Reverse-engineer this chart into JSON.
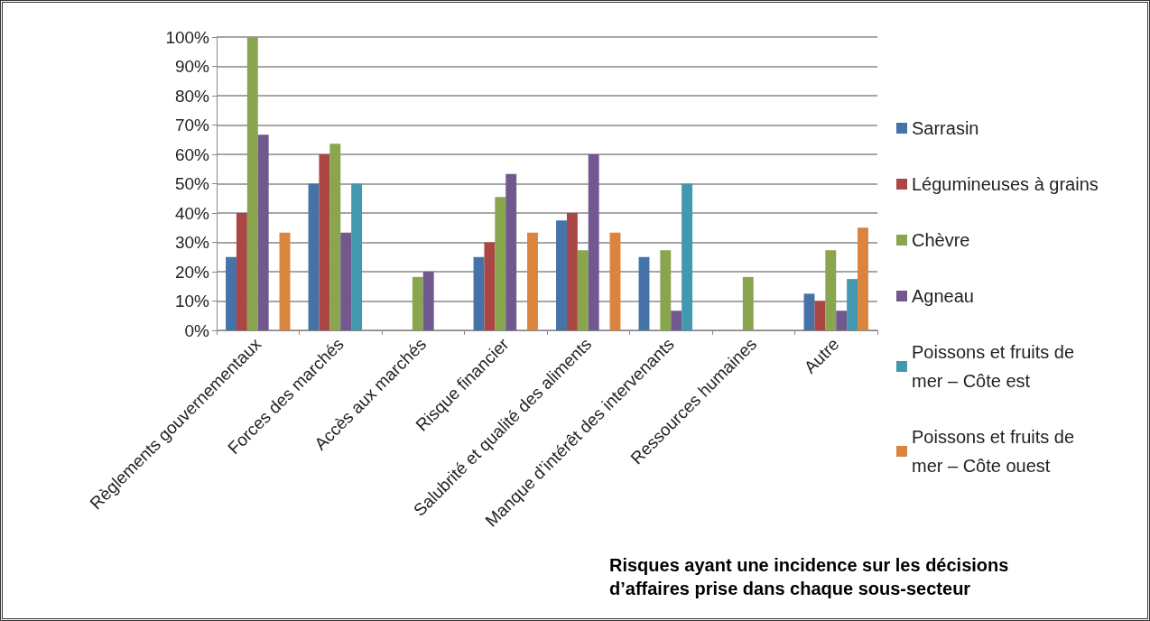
{
  "chart_data": {
    "type": "bar",
    "title": "Risques ayant une incidence sur les décisions d’affaires prise dans chaque sous-secteur",
    "categories": [
      "Règlements gouvernementaux",
      "Forces des marchés",
      "Accès aux marchés",
      "Risque financier",
      "Salubrité et qualité des aliments",
      "Manque d’intérêt des intervenants",
      "Ressources humaines",
      "Autre"
    ],
    "series": [
      {
        "name": "Sarrasin",
        "color": "#4572a7",
        "values": [
          25,
          50,
          0,
          25,
          37.5,
          25,
          0,
          12.5
        ]
      },
      {
        "name": "Légumineuses à grains",
        "color": "#aa4643",
        "values": [
          40,
          60,
          0,
          30,
          40,
          0,
          0,
          10
        ]
      },
      {
        "name": "Chèvre",
        "color": "#89a54e",
        "values": [
          100,
          63.6,
          18.2,
          45.5,
          27.3,
          27.3,
          18.2,
          27.3
        ]
      },
      {
        "name": "Agneau",
        "color": "#71588f",
        "values": [
          66.7,
          33.3,
          20,
          53.3,
          60,
          6.7,
          0,
          6.7
        ]
      },
      {
        "name": "Poissons et fruits de mer – Côte est",
        "color": "#4198af",
        "values": [
          0,
          50,
          0,
          0,
          0,
          50,
          0,
          17.5
        ]
      },
      {
        "name": "Poissons et fruits de mer – Côte ouest",
        "color": "#db843d",
        "values": [
          33.3,
          0,
          0,
          33.3,
          33.3,
          0,
          0,
          35
        ]
      }
    ],
    "ylim": [
      0,
      100
    ],
    "yticks": [
      {
        "value": 0,
        "label": "0%"
      },
      {
        "value": 10,
        "label": "10%"
      },
      {
        "value": 20,
        "label": "20%"
      },
      {
        "value": 30,
        "label": "30%"
      },
      {
        "value": 40,
        "label": "40%"
      },
      {
        "value": 50,
        "label": "50%"
      },
      {
        "value": 60,
        "label": "60%"
      },
      {
        "value": 70,
        "label": "70%"
      },
      {
        "value": 80,
        "label": "80%"
      },
      {
        "value": 90,
        "label": "90%"
      },
      {
        "value": 100,
        "label": "100%"
      }
    ],
    "grid": "y",
    "legend": "right"
  }
}
